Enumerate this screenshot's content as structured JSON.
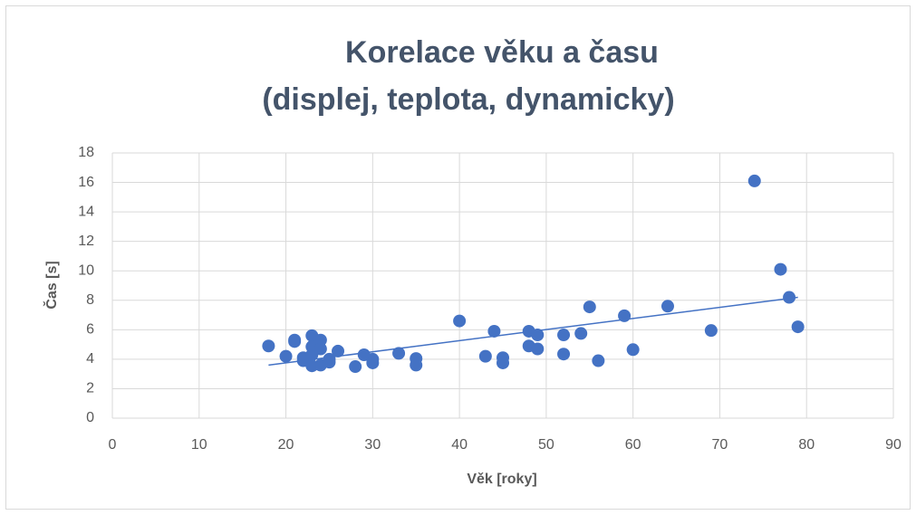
{
  "chart_data": {
    "type": "scatter",
    "title": [
      "Korelace věku a času",
      "(displej, teplota, dynamicky)"
    ],
    "x_label": "Věk [roky]",
    "y_label": "Čas [s]",
    "color": "#4472c4",
    "grid": true,
    "xlim": [
      0,
      90
    ],
    "xticks": [
      0,
      10,
      20,
      30,
      40,
      50,
      60,
      70,
      80,
      90
    ],
    "ylim": [
      0,
      18
    ],
    "yticks": [
      0,
      2,
      4,
      6,
      8,
      10,
      12,
      14,
      16,
      18
    ],
    "x": [
      18,
      20,
      21,
      21,
      22,
      22,
      23,
      23,
      23,
      23,
      24,
      24,
      24,
      25,
      25,
      26,
      28,
      29,
      30,
      30,
      33,
      35,
      35,
      40,
      43,
      44,
      45,
      45,
      48,
      48,
      49,
      49,
      52,
      52,
      54,
      55,
      56,
      59,
      60,
      64,
      69,
      74,
      77,
      78,
      79
    ],
    "values": [
      4.9,
      4.2,
      5.3,
      5.2,
      4.1,
      3.9,
      5.6,
      4.85,
      4.3,
      3.55,
      5.3,
      4.7,
      3.6,
      4.0,
      3.8,
      4.55,
      3.5,
      4.3,
      4.0,
      3.75,
      4.4,
      4.05,
      3.6,
      6.6,
      4.2,
      5.9,
      4.1,
      3.75,
      5.9,
      4.9,
      5.65,
      4.7,
      5.65,
      4.35,
      5.75,
      7.55,
      3.9,
      6.95,
      4.65,
      7.6,
      5.95,
      16.1,
      10.1,
      8.2,
      6.2
    ],
    "trendline": {
      "x": [
        18,
        79
      ],
      "values": [
        3.6,
        8.2
      ]
    }
  }
}
